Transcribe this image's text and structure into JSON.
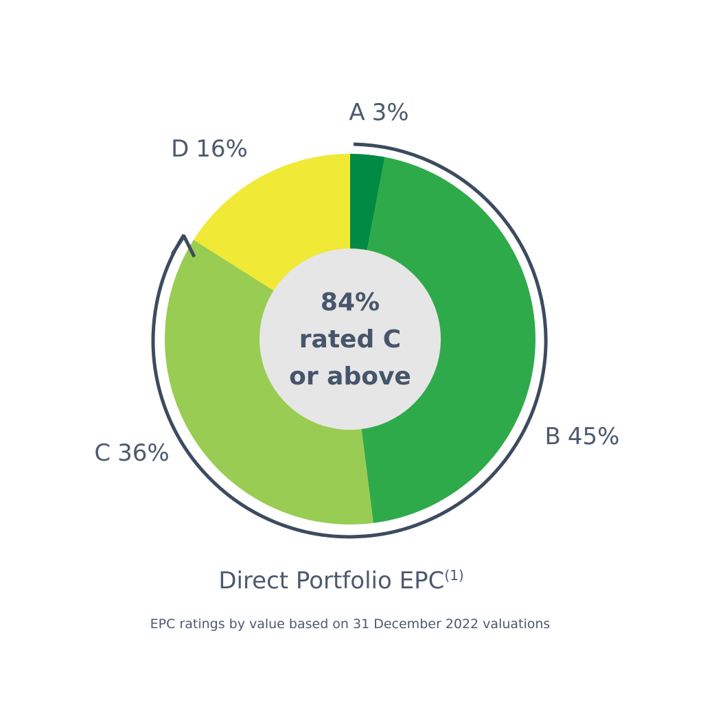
{
  "chart_data": {
    "type": "donut",
    "title": "Direct Portfolio EPC",
    "title_superscript": "(1)",
    "subtitle": "EPC ratings by value based on 31 December 2022 valuations",
    "center_annotation": [
      "84%",
      "rated C",
      "or above"
    ],
    "categories": [
      "A",
      "B",
      "C",
      "D"
    ],
    "values": [
      3,
      45,
      36,
      16
    ],
    "value_labels": [
      "3%",
      "45%",
      "36%",
      "16%"
    ],
    "colors": [
      "#008a43",
      "#2faa4a",
      "#99cc52",
      "#f0e936"
    ]
  }
}
